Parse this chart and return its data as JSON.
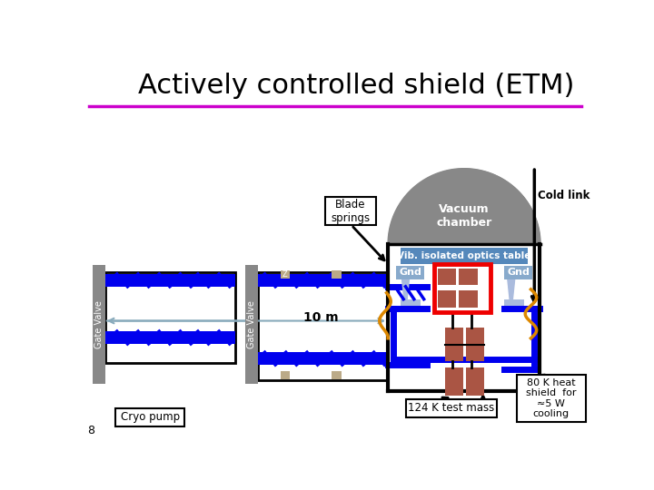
{
  "title": "Actively controlled shield (ETM)",
  "title_fontsize": 22,
  "title_color": "#000000",
  "bg_color": "#ffffff",
  "header_line_color": "#cc00cc",
  "slide_number": "8",
  "labels": {
    "gate_valve": "Gate Valve",
    "cryo_pump": "Cryo pump",
    "blade_springs": "Blade\nsprings",
    "vacuum_chamber": "Vacuum\nchamber",
    "cold_link": "Cold link",
    "vib_isolated": "Vib. isolated optics table",
    "gnd_left": "Gnd",
    "gnd_right": "Gnd",
    "ten_m": "10 m",
    "test_mass": "124 K test mass",
    "heat_shield": "80 K heat\nshield  for\n≈5 W\ncooling"
  },
  "colors": {
    "blue_tube": "#0000ee",
    "blue_tube2": "#0000cc",
    "light_blue_gnd": "#88aacc",
    "light_blue_gnd2": "#aabbdd",
    "gray_valve": "#888888",
    "black": "#000000",
    "white": "#ffffff",
    "vacuum_dome": "#888888",
    "vib_table": "#5588bb",
    "red_box": "#ee0000",
    "brown_mass": "#aa5544",
    "tan_spacer": "#bbaa88",
    "orange_wire": "#dd8800",
    "arrow_gray": "#88aabb"
  }
}
